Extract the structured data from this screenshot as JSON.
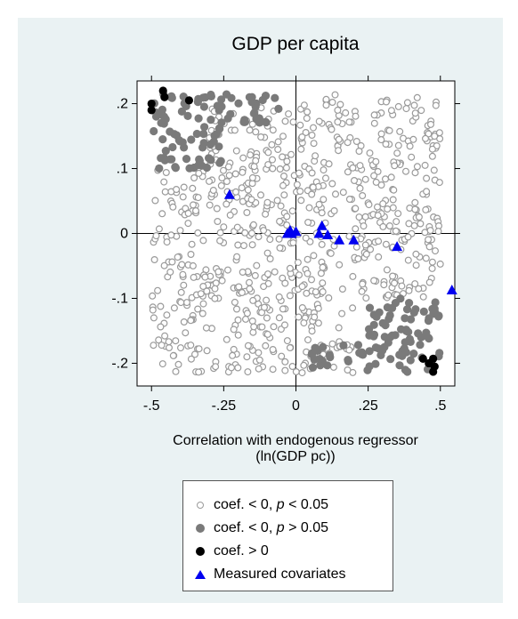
{
  "chart_data": {
    "type": "scatter",
    "title": "GDP per capita",
    "xlabel": "Correlation with endogenous regressor",
    "xlabel_sub": "(ln(GDP pc))",
    "ylabel": "",
    "xlim": [
      -0.55,
      0.55
    ],
    "ylim": [
      -0.235,
      0.235
    ],
    "x_ticks": [
      -0.5,
      -0.25,
      0,
      0.25,
      0.5
    ],
    "x_tick_labels": [
      "-.5",
      "-.25",
      "0",
      ".25",
      ".5"
    ],
    "y_ticks": [
      -0.2,
      -0.1,
      0,
      0.1,
      0.2
    ],
    "y_tick_labels": [
      "-.2",
      "-.1",
      "0",
      ".1",
      ".2"
    ],
    "grid": false,
    "reference_lines": {
      "x": 0,
      "y": 0
    },
    "legend_position": "bottom",
    "series": [
      {
        "name": "coef. < 0, p < 0.05",
        "marker": "hollow-circle",
        "color": "#9a9a9a",
        "approx_count": 780,
        "regions": [
          {
            "x": [
              -0.5,
              0.0
            ],
            "y": [
              -0.215,
              0.1
            ]
          },
          {
            "x": [
              -0.3,
              0.0
            ],
            "y": [
              0.1,
              0.2
            ]
          },
          {
            "x": [
              0.0,
              0.5
            ],
            "y": [
              -0.1,
              0.215
            ]
          },
          {
            "x": [
              0.0,
              0.2
            ],
            "y": [
              -0.215,
              -0.1
            ]
          }
        ]
      },
      {
        "name": "coef. < 0, p > 0.05",
        "marker": "filled-circle",
        "color": "#7a7a7a",
        "approx_count": 200,
        "regions": [
          {
            "x": [
              -0.5,
              -0.25
            ],
            "y": [
              0.1,
              0.215
            ]
          },
          {
            "x": [
              -0.25,
              -0.05
            ],
            "y": [
              0.17,
              0.215
            ]
          },
          {
            "x": [
              0.25,
              0.5
            ],
            "y": [
              -0.215,
              -0.1
            ]
          },
          {
            "x": [
              0.05,
              0.25
            ],
            "y": [
              -0.215,
              -0.17
            ]
          }
        ]
      },
      {
        "name": "coef. > 0",
        "marker": "filled-circle",
        "color": "#000000",
        "points": [
          {
            "x": -0.5,
            "y": 0.2
          },
          {
            "x": -0.5,
            "y": 0.19
          },
          {
            "x": -0.46,
            "y": 0.22
          },
          {
            "x": -0.455,
            "y": 0.21
          },
          {
            "x": -0.37,
            "y": 0.205
          },
          {
            "x": 0.44,
            "y": -0.193
          },
          {
            "x": 0.475,
            "y": -0.193
          },
          {
            "x": 0.46,
            "y": -0.2
          },
          {
            "x": 0.48,
            "y": -0.205
          },
          {
            "x": 0.475,
            "y": -0.213
          }
        ]
      },
      {
        "name": "Measured covariates",
        "marker": "triangle",
        "color": "#0000f0",
        "points": [
          {
            "x": -0.23,
            "y": 0.06
          },
          {
            "x": -0.03,
            "y": 0.0
          },
          {
            "x": -0.02,
            "y": 0.005
          },
          {
            "x": -0.015,
            "y": 0.0
          },
          {
            "x": 0.0,
            "y": 0.003
          },
          {
            "x": 0.08,
            "y": 0.0
          },
          {
            "x": 0.09,
            "y": 0.012
          },
          {
            "x": 0.11,
            "y": -0.002
          },
          {
            "x": 0.15,
            "y": -0.01
          },
          {
            "x": 0.2,
            "y": -0.01
          },
          {
            "x": 0.35,
            "y": -0.02
          },
          {
            "x": 0.54,
            "y": -0.087
          }
        ]
      }
    ]
  },
  "legend": {
    "items": [
      {
        "prefix": "coef. < 0, ",
        "italic": "p",
        "suffix": " < 0.05"
      },
      {
        "prefix": "coef. < 0, ",
        "italic": "p",
        "suffix": " > 0.05"
      },
      {
        "prefix": "coef. > 0",
        "italic": "",
        "suffix": ""
      },
      {
        "prefix": "Measured covariates",
        "italic": "",
        "suffix": ""
      }
    ]
  },
  "colors": {
    "background": "#eaf2f3",
    "hollow": "#9a9a9a",
    "gray": "#7a7a7a",
    "black": "#000000",
    "blue": "#0000f0"
  }
}
